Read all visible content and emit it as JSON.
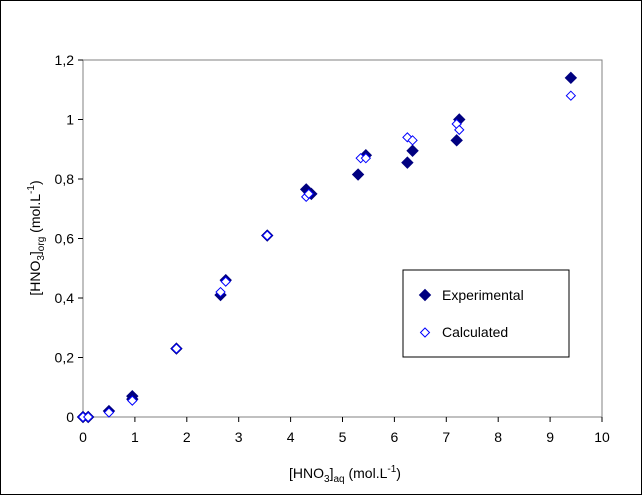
{
  "chart_data": {
    "type": "scatter",
    "title": "",
    "xlabel": {
      "main": "[HNO",
      "sub1": "3",
      "mid": "]",
      "sub2": "aq",
      "tail": " (mol.L",
      "sup": "-1",
      "end": ")"
    },
    "ylabel": {
      "main": "[HNO",
      "sub1": "3",
      "mid": "]",
      "sub2": "org",
      "tail": " (mol.L",
      "sup": "-1",
      "end": ")"
    },
    "xlim": [
      0,
      10
    ],
    "ylim": [
      0,
      1.2
    ],
    "xticks": [
      "0",
      "1",
      "2",
      "3",
      "4",
      "5",
      "6",
      "7",
      "8",
      "9",
      "10"
    ],
    "yticks": [
      "0",
      "0,2",
      "0,4",
      "0,6",
      "0,8",
      "1",
      "1,2"
    ],
    "grid": false,
    "legend_position": "right",
    "series": [
      {
        "name": "Experimental",
        "marker": "filled-diamond",
        "color": "#000080",
        "points": [
          [
            0.0,
            0.0
          ],
          [
            0.1,
            0.0
          ],
          [
            0.5,
            0.02
          ],
          [
            0.95,
            0.06
          ],
          [
            0.95,
            0.07
          ],
          [
            1.8,
            0.23
          ],
          [
            2.65,
            0.41
          ],
          [
            2.75,
            0.46
          ],
          [
            3.55,
            0.61
          ],
          [
            4.3,
            0.765
          ],
          [
            4.4,
            0.75
          ],
          [
            5.3,
            0.815
          ],
          [
            5.45,
            0.88
          ],
          [
            6.25,
            0.855
          ],
          [
            6.35,
            0.895
          ],
          [
            7.2,
            0.93
          ],
          [
            7.25,
            1.0
          ],
          [
            9.4,
            1.14
          ]
        ]
      },
      {
        "name": "Calculated",
        "marker": "open-diamond",
        "color": "#0000ff",
        "points": [
          [
            0.0,
            0.0
          ],
          [
            0.1,
            0.0
          ],
          [
            0.5,
            0.015
          ],
          [
            0.95,
            0.055
          ],
          [
            1.8,
            0.23
          ],
          [
            2.65,
            0.42
          ],
          [
            2.75,
            0.455
          ],
          [
            3.55,
            0.61
          ],
          [
            4.3,
            0.74
          ],
          [
            4.35,
            0.75
          ],
          [
            5.35,
            0.87
          ],
          [
            5.45,
            0.87
          ],
          [
            6.25,
            0.94
          ],
          [
            6.35,
            0.93
          ],
          [
            7.2,
            0.985
          ],
          [
            7.25,
            0.965
          ],
          [
            9.4,
            1.08
          ]
        ]
      }
    ]
  }
}
